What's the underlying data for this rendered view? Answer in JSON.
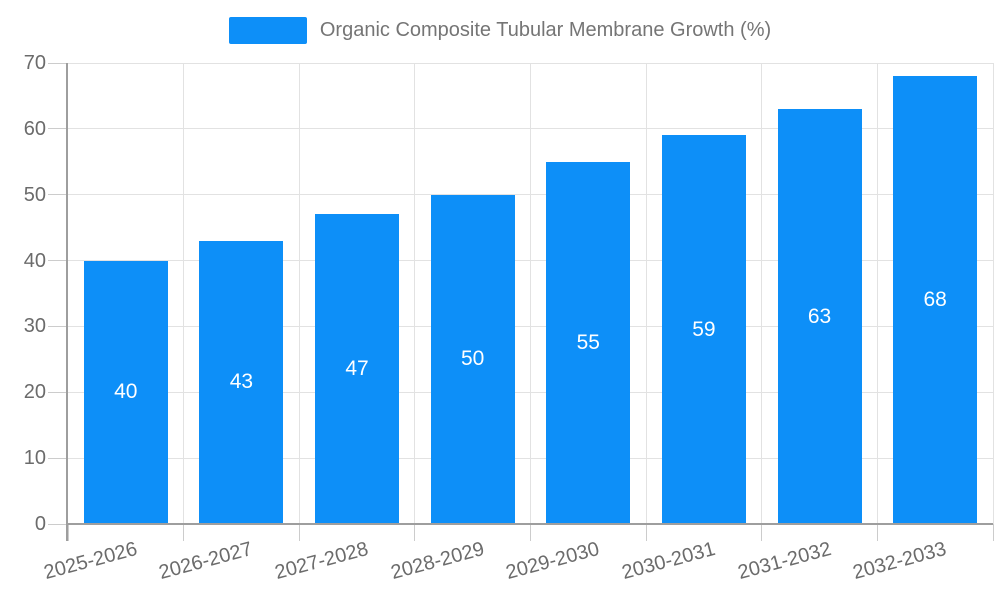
{
  "chart_data": {
    "type": "bar",
    "legend_label": "Organic Composite Tubular Membrane Growth (%)",
    "categories": [
      "2025-2026",
      "2026-2027",
      "2027-2028",
      "2028-2029",
      "2029-2030",
      "2030-2031",
      "2031-2032",
      "2032-2033"
    ],
    "values": [
      40,
      43,
      47,
      50,
      55,
      59,
      63,
      68
    ],
    "y_ticks": [
      0,
      10,
      20,
      30,
      40,
      50,
      60,
      70
    ],
    "ylim": [
      0,
      70
    ],
    "xlabel": "",
    "ylabel": "",
    "grid": "on",
    "legend_position": "top",
    "x_label_rotation_deg": -15,
    "colors": {
      "bar": "#0d8ff8",
      "bar_value_text": "#ffffff",
      "axis_text": "#6b6b6b",
      "legend_text": "#757575",
      "gridline": "#e2e2e2",
      "tick": "#cccccc",
      "axis_line": "#9e9e9e",
      "background": "#ffffff"
    }
  }
}
